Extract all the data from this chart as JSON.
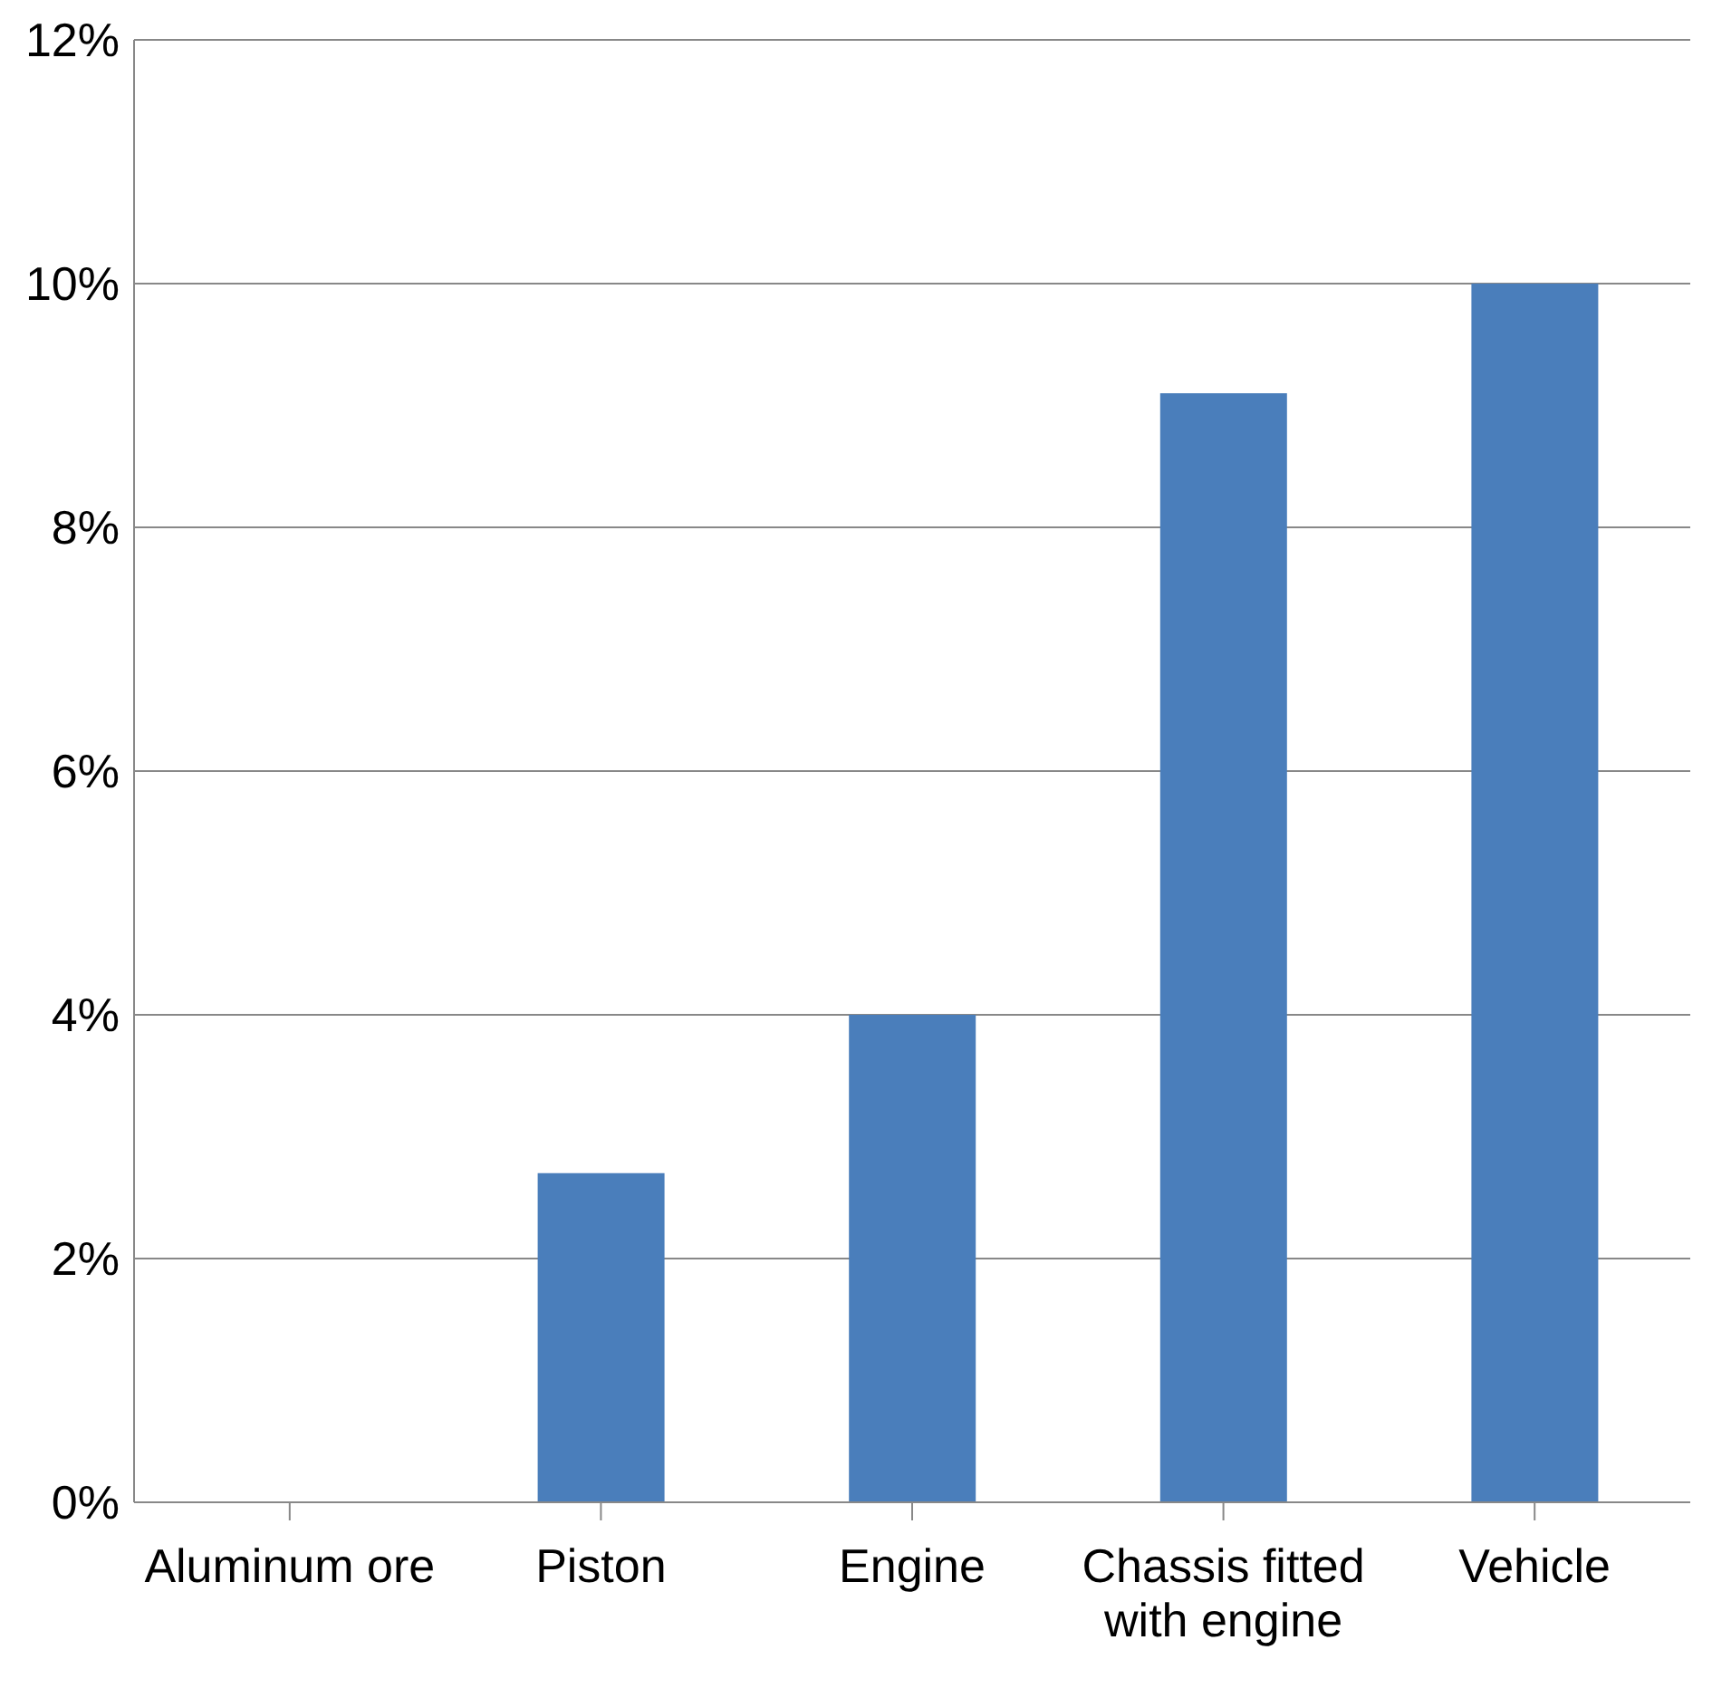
{
  "chart_data": {
    "type": "bar",
    "categories": [
      "Aluminum ore",
      "Piston",
      "Engine",
      "Chassis fitted with engine",
      "Vehicle"
    ],
    "values": [
      0,
      2.7,
      4.0,
      9.1,
      10.0
    ],
    "color": "#4a7ebb",
    "ylim": [
      0,
      12
    ],
    "yticks": [
      {
        "value": 0,
        "label": "0%"
      },
      {
        "value": 2,
        "label": "2%"
      },
      {
        "value": 4,
        "label": "4%"
      },
      {
        "value": 6,
        "label": "6%"
      },
      {
        "value": 8,
        "label": "8%"
      },
      {
        "value": 10,
        "label": "10%"
      },
      {
        "value": 12,
        "label": "12%"
      }
    ],
    "grid": "y",
    "legend": false
  }
}
